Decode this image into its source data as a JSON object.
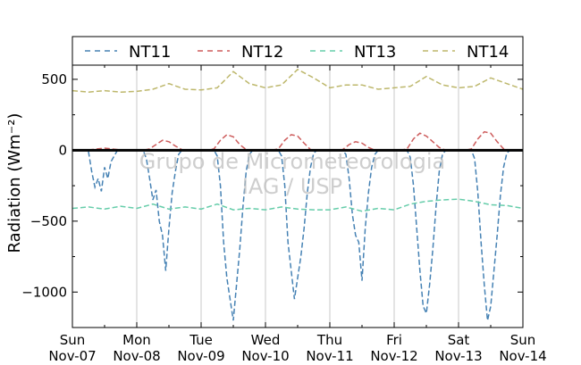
{
  "chart_data": {
    "type": "line",
    "ylabel": "Radiation (Wm⁻²)",
    "xlabel": "",
    "ylim": [
      -1250,
      600
    ],
    "xlim": [
      0,
      7
    ],
    "yticks": [
      -1000,
      -500,
      0,
      500
    ],
    "ytick_labels": [
      "−1000",
      "−500",
      "0",
      "500"
    ],
    "xticks": [
      {
        "day": "Sun",
        "date": "Nov-07"
      },
      {
        "day": "Mon",
        "date": "Nov-08"
      },
      {
        "day": "Tue",
        "date": "Nov-09"
      },
      {
        "day": "Wed",
        "date": "Nov-10"
      },
      {
        "day": "Thu",
        "date": "Nov-11"
      },
      {
        "day": "Fri",
        "date": "Nov-12"
      },
      {
        "day": "Sat",
        "date": "Nov-13"
      },
      {
        "day": "Sun",
        "date": "Nov-14"
      }
    ],
    "grid": "vertical",
    "legend_position": "top",
    "zero_line": true,
    "watermark": [
      "Grupo de Micrometeorologia",
      "IAG / USP"
    ],
    "series": [
      {
        "name": "NT11",
        "color": "#4682b4",
        "style": "dashed",
        "x": [
          0,
          0.1,
          0.2,
          0.25,
          0.3,
          0.35,
          0.4,
          0.45,
          0.5,
          0.55,
          0.6,
          0.65,
          0.7,
          0.8,
          0.9,
          1.0,
          1.05,
          1.1,
          1.15,
          1.2,
          1.25,
          1.3,
          1.35,
          1.4,
          1.45,
          1.5,
          1.55,
          1.6,
          1.65,
          1.7,
          1.75,
          1.8,
          1.9,
          2.0,
          2.1,
          2.2,
          2.25,
          2.3,
          2.35,
          2.4,
          2.45,
          2.5,
          2.55,
          2.6,
          2.65,
          2.7,
          2.75,
          2.8,
          2.9,
          3.0,
          3.1,
          3.2,
          3.25,
          3.3,
          3.35,
          3.4,
          3.45,
          3.5,
          3.55,
          3.6,
          3.65,
          3.7,
          3.75,
          3.8,
          3.9,
          4.0,
          4.1,
          4.2,
          4.25,
          4.3,
          4.35,
          4.4,
          4.45,
          4.5,
          4.55,
          4.6,
          4.65,
          4.7,
          4.75,
          4.8,
          4.9,
          5.0,
          5.1,
          5.2,
          5.25,
          5.3,
          5.35,
          5.4,
          5.45,
          5.5,
          5.55,
          5.6,
          5.65,
          5.7,
          5.75,
          5.8,
          5.9,
          6.0,
          6.1,
          6.2,
          6.25,
          6.3,
          6.35,
          6.4,
          6.45,
          6.5,
          6.55,
          6.6,
          6.65,
          6.7,
          6.75,
          6.8,
          6.9,
          7.0
        ],
        "y": [
          0,
          0,
          0,
          -10,
          -150,
          -260,
          -200,
          -290,
          -120,
          -200,
          -80,
          -40,
          0,
          0,
          0,
          0,
          0,
          0,
          -60,
          -200,
          -350,
          -280,
          -500,
          -600,
          -850,
          -550,
          -300,
          -150,
          -30,
          0,
          0,
          0,
          0,
          0,
          0,
          0,
          -40,
          -250,
          -650,
          -900,
          -1050,
          -1200,
          -950,
          -700,
          -400,
          -150,
          -30,
          0,
          0,
          0,
          0,
          0,
          -40,
          -250,
          -650,
          -850,
          -1050,
          -900,
          -750,
          -550,
          -300,
          -120,
          -20,
          0,
          0,
          0,
          0,
          0,
          -30,
          -200,
          -450,
          -600,
          -650,
          -920,
          -550,
          -300,
          -120,
          -30,
          0,
          0,
          0,
          0,
          0,
          0,
          -50,
          -250,
          -550,
          -850,
          -1100,
          -1150,
          -950,
          -700,
          -400,
          -150,
          -30,
          0,
          0,
          0,
          0,
          0,
          -60,
          -300,
          -650,
          -950,
          -1200,
          -1100,
          -850,
          -600,
          -320,
          -120,
          -20,
          0,
          0,
          0
        ]
      },
      {
        "name": "NT12",
        "color": "#cd5c5c",
        "style": "dashed",
        "x": [
          0,
          0.1,
          0.2,
          0.3,
          0.4,
          0.5,
          0.6,
          0.7,
          0.8,
          0.9,
          1.0,
          1.1,
          1.2,
          1.3,
          1.4,
          1.5,
          1.6,
          1.7,
          1.8,
          1.9,
          2.0,
          2.1,
          2.2,
          2.3,
          2.4,
          2.5,
          2.6,
          2.7,
          2.8,
          2.9,
          3.0,
          3.1,
          3.2,
          3.3,
          3.4,
          3.5,
          3.6,
          3.7,
          3.8,
          3.9,
          4.0,
          4.1,
          4.2,
          4.3,
          4.4,
          4.5,
          4.6,
          4.7,
          4.8,
          4.9,
          5.0,
          5.1,
          5.2,
          5.3,
          5.4,
          5.5,
          5.6,
          5.7,
          5.8,
          5.9,
          6.0,
          6.1,
          6.2,
          6.3,
          6.4,
          6.5,
          6.6,
          6.7,
          6.8,
          6.9,
          7.0
        ],
        "y": [
          0,
          0,
          0,
          5,
          10,
          15,
          10,
          5,
          0,
          0,
          0,
          0,
          10,
          40,
          70,
          60,
          30,
          5,
          0,
          0,
          0,
          0,
          10,
          70,
          110,
          95,
          40,
          5,
          0,
          0,
          0,
          0,
          10,
          70,
          110,
          100,
          50,
          5,
          0,
          0,
          0,
          0,
          5,
          40,
          60,
          50,
          20,
          0,
          0,
          0,
          0,
          0,
          10,
          80,
          120,
          100,
          60,
          20,
          0,
          0,
          0,
          0,
          10,
          80,
          130,
          120,
          60,
          10,
          0,
          0,
          0
        ]
      },
      {
        "name": "NT13",
        "color": "#66cdaa",
        "style": "dashed",
        "x": [
          0,
          0.25,
          0.5,
          0.75,
          1.0,
          1.25,
          1.5,
          1.75,
          2.0,
          2.25,
          2.5,
          2.75,
          3.0,
          3.25,
          3.5,
          3.75,
          4.0,
          4.25,
          4.5,
          4.75,
          5.0,
          5.25,
          5.5,
          5.75,
          6.0,
          6.25,
          6.5,
          6.75,
          7.0
        ],
        "y": [
          -410,
          -400,
          -415,
          -395,
          -410,
          -380,
          -415,
          -400,
          -415,
          -380,
          -420,
          -410,
          -420,
          -400,
          -415,
          -420,
          -420,
          -400,
          -430,
          -410,
          -420,
          -380,
          -360,
          -350,
          -345,
          -360,
          -385,
          -390,
          -410
        ]
      },
      {
        "name": "NT14",
        "color": "#bdb76b",
        "style": "dashed",
        "x": [
          0,
          0.25,
          0.5,
          0.75,
          1.0,
          1.25,
          1.5,
          1.75,
          2.0,
          2.25,
          2.5,
          2.75,
          3.0,
          3.25,
          3.5,
          3.75,
          4.0,
          4.25,
          4.5,
          4.75,
          5.0,
          5.25,
          5.5,
          5.75,
          6.0,
          6.25,
          6.5,
          6.75,
          7.0
        ],
        "y": [
          420,
          410,
          420,
          410,
          415,
          430,
          470,
          430,
          425,
          440,
          555,
          470,
          440,
          460,
          570,
          510,
          440,
          460,
          460,
          430,
          440,
          450,
          520,
          460,
          440,
          450,
          510,
          470,
          430
        ]
      }
    ]
  }
}
